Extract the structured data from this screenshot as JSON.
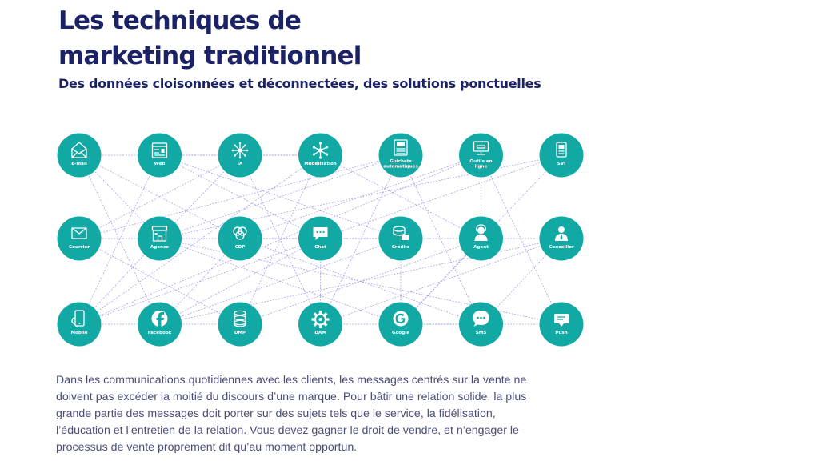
{
  "heading": {
    "title_line1": "Les techniques de",
    "title_line2": "marketing traditionnel",
    "subtitle": "Des données cloisonnées et déconnectées, des solutions ponctuelles"
  },
  "body": "Dans les communications quotidiennes avec les clients, les messages centrés sur la vente ne doivent pas excéder la moitié du discours d’une marque. Pour bâtir une relation solide, la plus grande partie des messages doit porter sur des sujets tels que le service, la fidélisation, l’éducation et l’entretien de la relation. Vous devez gagner le droit de vendre, et n’engager le processus de vente proprement dit qu’au moment opportun.",
  "colors": {
    "node": "#12a8a4",
    "connector": "#8f8fe3",
    "title": "#1b2265"
  },
  "nodes": [
    {
      "id": "email",
      "row": 0,
      "col": 0,
      "label": [
        "E-mail"
      ],
      "icon": "envelope-icon"
    },
    {
      "id": "web",
      "row": 0,
      "col": 1,
      "label": [
        "Web"
      ],
      "icon": "web-page-icon"
    },
    {
      "id": "ia",
      "row": 0,
      "col": 2,
      "label": [
        "IA"
      ],
      "icon": "neural-icon"
    },
    {
      "id": "modelisation",
      "row": 0,
      "col": 3,
      "label": [
        "Modélisation"
      ],
      "icon": "network-icon"
    },
    {
      "id": "guichets",
      "row": 0,
      "col": 4,
      "label": [
        "Guichets",
        "automatiques"
      ],
      "icon": "atm-icon"
    },
    {
      "id": "outils",
      "row": 0,
      "col": 5,
      "label": [
        "Outils en",
        "ligne"
      ],
      "icon": "monitor-icon"
    },
    {
      "id": "svi",
      "row": 0,
      "col": 6,
      "label": [
        "SVI"
      ],
      "icon": "phone-icon"
    },
    {
      "id": "courrier",
      "row": 1,
      "col": 0,
      "label": [
        "Courrier"
      ],
      "icon": "mail-icon"
    },
    {
      "id": "agence",
      "row": 1,
      "col": 1,
      "label": [
        "Agence"
      ],
      "icon": "storefront-icon"
    },
    {
      "id": "cdp",
      "row": 1,
      "col": 2,
      "label": [
        "CDP"
      ],
      "icon": "venn-icon"
    },
    {
      "id": "chat",
      "row": 1,
      "col": 3,
      "label": [
        "Chat"
      ],
      "icon": "chat-bubble-icon"
    },
    {
      "id": "credits",
      "row": 1,
      "col": 4,
      "label": [
        "Crédits"
      ],
      "icon": "coins-icon"
    },
    {
      "id": "agent",
      "row": 1,
      "col": 5,
      "label": [
        "Agent"
      ],
      "icon": "headset-agent-icon"
    },
    {
      "id": "conseiller",
      "row": 1,
      "col": 6,
      "label": [
        "Conseiller"
      ],
      "icon": "advisor-icon"
    },
    {
      "id": "mobile",
      "row": 2,
      "col": 0,
      "label": [
        "Mobile"
      ],
      "icon": "smartphone-icon"
    },
    {
      "id": "facebook",
      "row": 2,
      "col": 1,
      "label": [
        "Facebook"
      ],
      "icon": "facebook-icon"
    },
    {
      "id": "dmp",
      "row": 2,
      "col": 2,
      "label": [
        "DMP"
      ],
      "icon": "database-icon"
    },
    {
      "id": "dam",
      "row": 2,
      "col": 3,
      "label": [
        "DAM"
      ],
      "icon": "gear-icon"
    },
    {
      "id": "google",
      "row": 2,
      "col": 4,
      "label": [
        "Google"
      ],
      "icon": "google-icon"
    },
    {
      "id": "sms",
      "row": 2,
      "col": 5,
      "label": [
        "SMS"
      ],
      "icon": "speech-bubble-icon"
    },
    {
      "id": "push",
      "row": 2,
      "col": 6,
      "label": [
        "Push"
      ],
      "icon": "push-notification-icon"
    }
  ],
  "links": [
    [
      "email",
      "modelisation"
    ],
    [
      "email",
      "agence"
    ],
    [
      "email",
      "cdp"
    ],
    [
      "email",
      "facebook"
    ],
    [
      "web",
      "ia"
    ],
    [
      "web",
      "chat"
    ],
    [
      "web",
      "credits"
    ],
    [
      "web",
      "mobile"
    ],
    [
      "ia",
      "modelisation"
    ],
    [
      "ia",
      "dam"
    ],
    [
      "ia",
      "courrier"
    ],
    [
      "ia",
      "agence"
    ],
    [
      "modelisation",
      "agent"
    ],
    [
      "modelisation",
      "dmp"
    ],
    [
      "modelisation",
      "mobile"
    ],
    [
      "guichets",
      "courrier"
    ],
    [
      "guichets",
      "agence"
    ],
    [
      "guichets",
      "sms"
    ],
    [
      "guichets",
      "dam"
    ],
    [
      "outils",
      "mobile"
    ],
    [
      "outils",
      "push"
    ],
    [
      "outils",
      "cdp"
    ],
    [
      "outils",
      "agent"
    ],
    [
      "svi",
      "agence"
    ],
    [
      "svi",
      "google"
    ],
    [
      "svi",
      "chat"
    ],
    [
      "courrier",
      "dmp"
    ],
    [
      "courrier",
      "chat"
    ],
    [
      "agence",
      "push"
    ],
    [
      "agence",
      "google"
    ],
    [
      "agence",
      "mobile"
    ],
    [
      "cdp",
      "facebook"
    ],
    [
      "cdp",
      "sms"
    ],
    [
      "cdp",
      "credits"
    ],
    [
      "chat",
      "conseiller"
    ],
    [
      "chat",
      "dam"
    ],
    [
      "chat",
      "mobile"
    ],
    [
      "credits",
      "facebook"
    ],
    [
      "credits",
      "google"
    ],
    [
      "agent",
      "dmp"
    ],
    [
      "agent",
      "google"
    ],
    [
      "conseiller",
      "dam"
    ],
    [
      "conseiller",
      "facebook"
    ],
    [
      "conseiller",
      "sms"
    ],
    [
      "mobile",
      "dmp"
    ],
    [
      "facebook",
      "chat"
    ],
    [
      "dam",
      "push"
    ],
    [
      "google",
      "sms"
    ]
  ]
}
